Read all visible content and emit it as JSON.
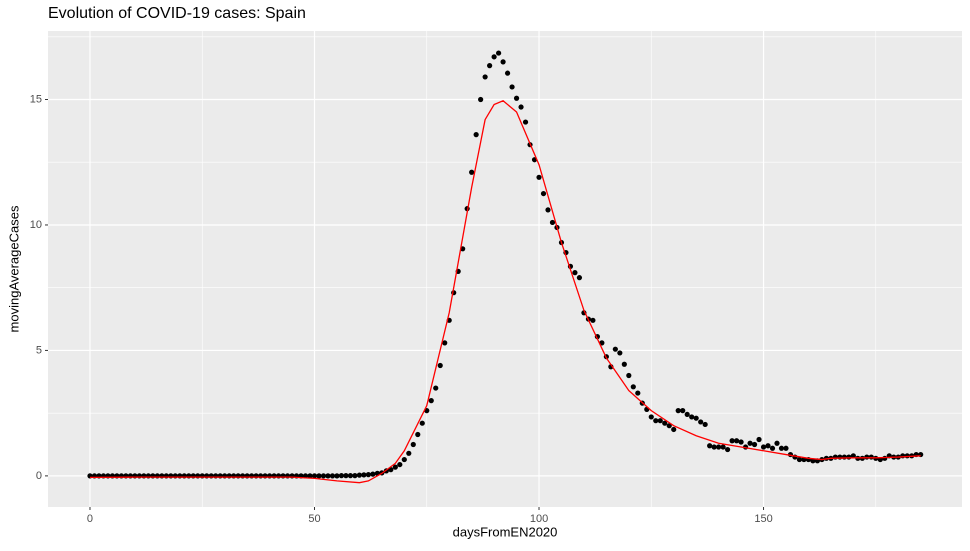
{
  "chart_data": {
    "type": "scatter",
    "title": "Evolution of COVID-19 cases:  Spain",
    "x_label": "daysFromEN2020",
    "y_label": "movingAverageCases",
    "xlim": [
      -9.35,
      194.2
    ],
    "ylim": [
      -1.24,
      17.73
    ],
    "xticks": [
      0,
      50,
      100,
      150
    ],
    "yticks": [
      0,
      5,
      10,
      15
    ],
    "x_minor_ticks": [
      25,
      75,
      125,
      175
    ],
    "y_minor_ticks": [
      2.5,
      7.5,
      12.5,
      17.5
    ],
    "grid": true,
    "series": [
      {
        "type": "scatter",
        "color": "#000000",
        "x": [
          0,
          1,
          2,
          3,
          4,
          5,
          6,
          7,
          8,
          9,
          10,
          11,
          12,
          13,
          14,
          15,
          16,
          17,
          18,
          19,
          20,
          21,
          22,
          23,
          24,
          25,
          26,
          27,
          28,
          29,
          30,
          31,
          32,
          33,
          34,
          35,
          36,
          37,
          38,
          39,
          40,
          41,
          42,
          43,
          44,
          45,
          46,
          47,
          48,
          49,
          50,
          51,
          52,
          53,
          54,
          55,
          56,
          57,
          58,
          59,
          60,
          61,
          62,
          63,
          64,
          65,
          66,
          67,
          68,
          69,
          70,
          71,
          72,
          73,
          74,
          75,
          76,
          77,
          78,
          79,
          80,
          81,
          82,
          83,
          84,
          85,
          86,
          87,
          88,
          89,
          90,
          91,
          92,
          93,
          94,
          95,
          96,
          97,
          98,
          99,
          100,
          101,
          102,
          103,
          104,
          105,
          106,
          107,
          108,
          109,
          110,
          111,
          112,
          113,
          114,
          115,
          116,
          117,
          118,
          119,
          120,
          121,
          122,
          123,
          124,
          125,
          126,
          127,
          128,
          129,
          130,
          131,
          132,
          133,
          134,
          135,
          136,
          137,
          138,
          139,
          140,
          141,
          142,
          143,
          144,
          145,
          146,
          147,
          148,
          149,
          150,
          151,
          152,
          153,
          154,
          155,
          156,
          157,
          158,
          159,
          160,
          161,
          162,
          163,
          164,
          165,
          166,
          167,
          168,
          169,
          170,
          171,
          172,
          173,
          174,
          175,
          176,
          177,
          178,
          179,
          180,
          181,
          182,
          183,
          184,
          185
        ],
        "values": [
          0,
          0,
          0,
          0,
          0,
          0,
          0,
          0,
          0,
          0,
          0,
          0,
          0,
          0,
          0,
          0,
          0,
          0,
          0,
          0,
          0,
          0,
          0,
          0,
          0,
          0,
          0,
          0,
          0,
          0,
          0,
          0,
          0,
          0,
          0,
          0,
          0,
          0,
          0,
          0,
          0,
          0,
          0,
          0,
          0,
          0,
          0,
          0,
          0,
          0,
          0,
          0,
          0,
          0,
          0,
          0,
          0.01,
          0.01,
          0.01,
          0.01,
          0.03,
          0.04,
          0.05,
          0.07,
          0.1,
          0.12,
          0.2,
          0.25,
          0.35,
          0.45,
          0.65,
          0.9,
          1.25,
          1.65,
          2.1,
          2.6,
          3.0,
          3.5,
          4.4,
          5.3,
          6.2,
          7.3,
          8.15,
          9.05,
          10.65,
          12.1,
          13.6,
          15.0,
          15.9,
          16.35,
          16.7,
          16.85,
          16.5,
          16.05,
          15.5,
          15.05,
          14.7,
          14.1,
          13.2,
          12.6,
          11.9,
          11.25,
          10.6,
          10.1,
          9.9,
          9.3,
          8.9,
          8.35,
          8.1,
          7.9,
          6.5,
          6.25,
          6.2,
          5.55,
          5.3,
          4.75,
          4.35,
          5.05,
          4.9,
          4.45,
          4.0,
          3.55,
          3.3,
          2.9,
          2.65,
          2.35,
          2.2,
          2.2,
          2.1,
          2.0,
          1.85,
          2.6,
          2.6,
          2.45,
          2.35,
          2.3,
          2.15,
          2.05,
          1.2,
          1.15,
          1.15,
          1.15,
          1.05,
          1.4,
          1.4,
          1.35,
          1.15,
          1.3,
          1.25,
          1.45,
          1.15,
          1.2,
          1.1,
          1.3,
          1.1,
          1.1,
          0.85,
          0.75,
          0.65,
          0.65,
          0.65,
          0.6,
          0.6,
          0.65,
          0.7,
          0.7,
          0.75,
          0.75,
          0.75,
          0.75,
          0.8,
          0.7,
          0.7,
          0.75,
          0.75,
          0.7,
          0.65,
          0.7,
          0.8,
          0.75,
          0.75,
          0.8,
          0.8,
          0.8,
          0.85,
          0.85
        ]
      },
      {
        "type": "line",
        "color": "#ff0000",
        "x": [
          0,
          10,
          20,
          30,
          40,
          45,
          50,
          55,
          60,
          62,
          65,
          68,
          70,
          75,
          80,
          85,
          88,
          90,
          92,
          95,
          100,
          105,
          110,
          115,
          120,
          125,
          130,
          135,
          140,
          145,
          150,
          155,
          160,
          163,
          165,
          170,
          175,
          180,
          185
        ],
        "values": [
          -0.06,
          -0.05,
          -0.05,
          -0.05,
          -0.05,
          -0.05,
          -0.1,
          -0.2,
          -0.27,
          -0.2,
          0.1,
          0.5,
          1.0,
          2.8,
          6.5,
          11.5,
          14.2,
          14.8,
          14.95,
          14.5,
          12.4,
          9.3,
          6.6,
          4.7,
          3.4,
          2.6,
          2.0,
          1.6,
          1.3,
          1.15,
          1.0,
          0.85,
          0.7,
          0.65,
          0.7,
          0.72,
          0.72,
          0.75,
          0.8
        ]
      }
    ]
  }
}
